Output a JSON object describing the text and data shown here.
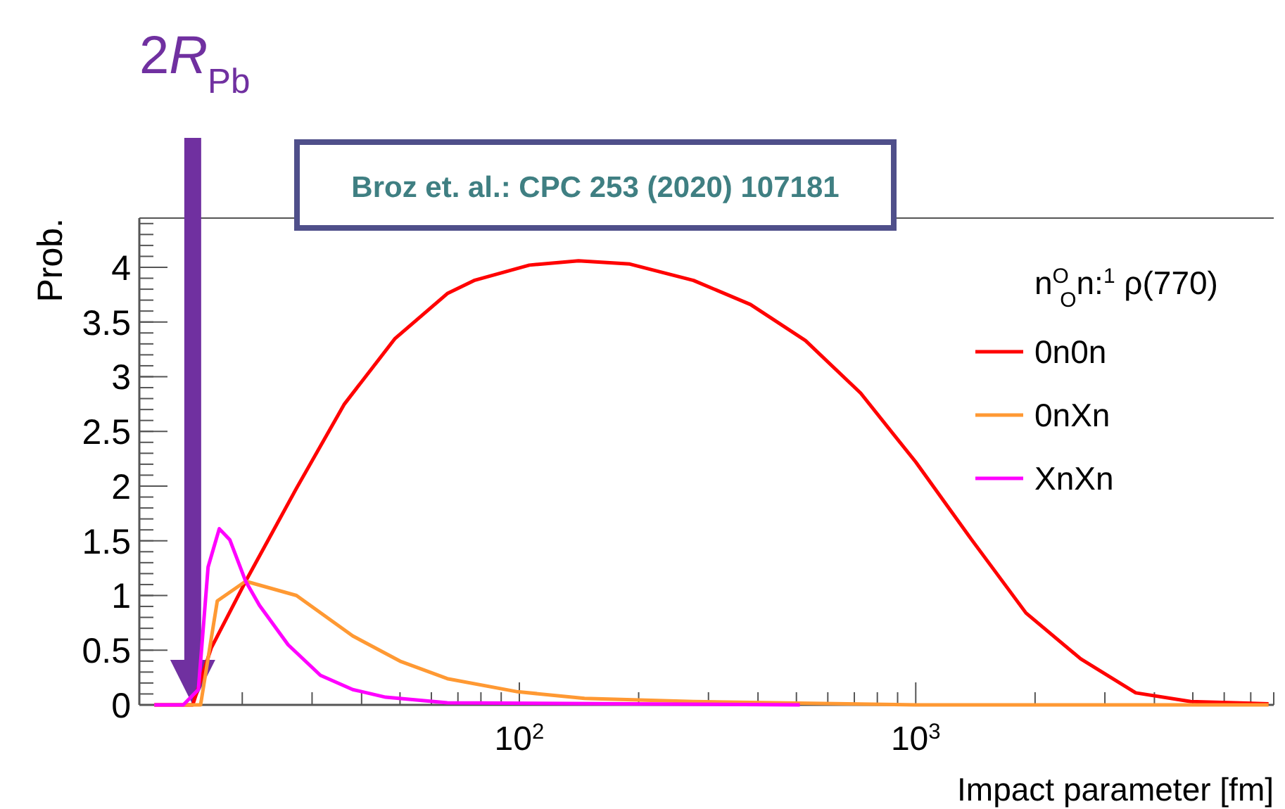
{
  "chart_data": {
    "type": "line",
    "xlabel": "Impact parameter [fm]",
    "ylabel": "Prob.",
    "legend_title": "n$^{O}$$_{O}$n:$^{1}$ ρ(770)",
    "log": "x",
    "legend": "top right",
    "grid": false,
    "marker": "none",
    "line_style": "solid",
    "xlim": [
      11,
      8000
    ],
    "ylim": [
      0,
      4.45
    ],
    "xticks": [
      {
        "value": 20,
        "label": null
      },
      {
        "value": 30,
        "label": null
      },
      {
        "value": 40,
        "label": null
      },
      {
        "value": 50,
        "label": null
      },
      {
        "value": 60,
        "label": null
      },
      {
        "value": 70,
        "label": null
      },
      {
        "value": 80,
        "label": null
      },
      {
        "value": 90,
        "label": null
      },
      {
        "value": 100,
        "label": "10$^{2}$"
      },
      {
        "value": 200,
        "label": null
      },
      {
        "value": 300,
        "label": null
      },
      {
        "value": 400,
        "label": null
      },
      {
        "value": 500,
        "label": null
      },
      {
        "value": 600,
        "label": null
      },
      {
        "value": 700,
        "label": null
      },
      {
        "value": 800,
        "label": null
      },
      {
        "value": 900,
        "label": null
      },
      {
        "value": 1000,
        "label": "10$^{3}$"
      },
      {
        "value": 2000,
        "label": null
      },
      {
        "value": 3000,
        "label": null
      },
      {
        "value": 4000,
        "label": null
      },
      {
        "value": 5000,
        "label": null
      },
      {
        "value": 6000,
        "label": null
      },
      {
        "value": 7000,
        "label": null
      },
      {
        "value": 8000,
        "label": null
      }
    ],
    "yticks": [
      0,
      0.5,
      1,
      1.5,
      2,
      2.5,
      3,
      3.5,
      4
    ],
    "series": [
      {
        "name": "0n0n",
        "color": "#ff0000",
        "x": [
          12,
          15,
          16.7,
          20.4,
          27.4,
          36.2,
          48.6,
          65.8,
          76.9,
          106,
          141,
          190,
          275,
          383,
          527,
          726,
          1000,
          1377,
          1897,
          2608,
          3589,
          4942,
          7762
        ],
        "values": [
          0,
          0,
          0.52,
          1.13,
          1.98,
          2.75,
          3.35,
          3.76,
          3.88,
          4.02,
          4.06,
          4.03,
          3.88,
          3.66,
          3.33,
          2.85,
          2.22,
          1.52,
          0.84,
          0.42,
          0.11,
          0.03,
          0.01
        ]
      },
      {
        "name": "0nXn",
        "color": "#ff9933",
        "x": [
          12,
          15.7,
          17.3,
          20.4,
          27.4,
          38,
          50,
          65.8,
          99,
          146,
          275,
          1000,
          7762
        ],
        "values": [
          0,
          0,
          0.95,
          1.13,
          1,
          0.63,
          0.4,
          0.24,
          0.12,
          0.06,
          0.03,
          0,
          0
        ]
      },
      {
        "name": "XnXn",
        "color": "#ff00ff",
        "x": [
          12,
          14.2,
          15.5,
          16.4,
          17.5,
          18.6,
          20.4,
          22.1,
          26.1,
          31.5,
          38,
          46,
          65.8,
          510
        ],
        "values": [
          0,
          0,
          0.14,
          1.26,
          1.61,
          1.51,
          1.13,
          0.91,
          0.55,
          0.27,
          0.14,
          0.07,
          0.02,
          0
        ]
      }
    ],
    "ref_lines": [
      {
        "axis": "x",
        "value": 15,
        "label": "2R$_{Pb}$",
        "color": "#7030a0"
      }
    ],
    "annotations": [
      "Broz et. al.: CPC 253 (2020) 107181"
    ]
  }
}
